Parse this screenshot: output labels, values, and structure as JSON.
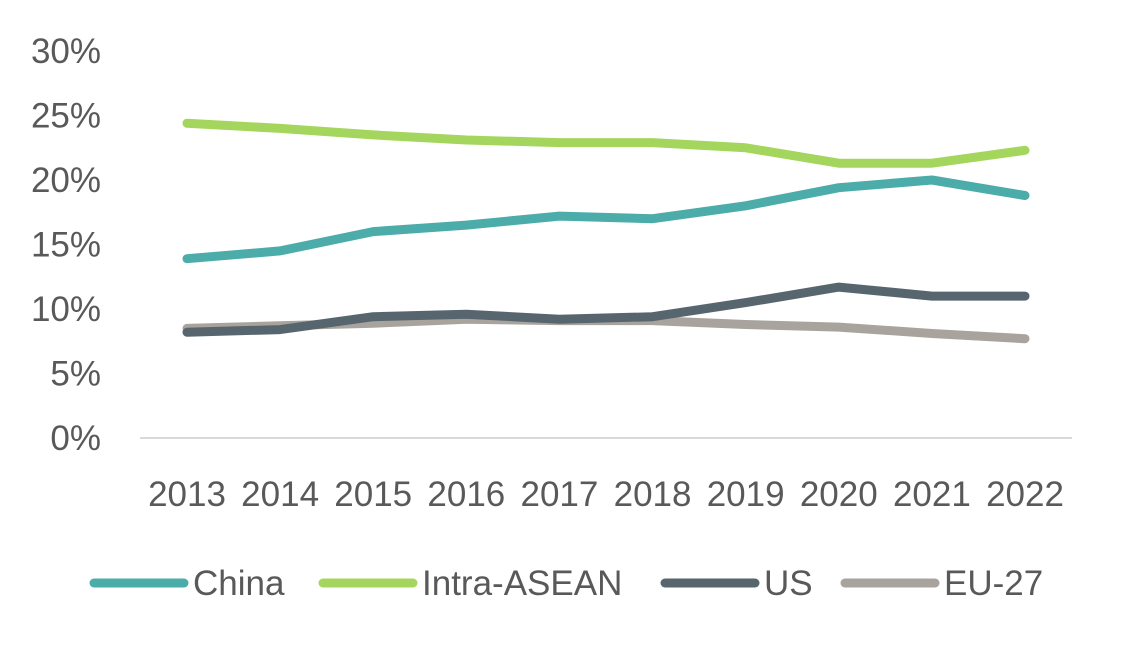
{
  "chart_data": {
    "type": "line",
    "title": "",
    "xlabel": "",
    "ylabel": "",
    "categories": [
      "2013",
      "2014",
      "2015",
      "2016",
      "2017",
      "2018",
      "2019",
      "2020",
      "2021",
      "2022"
    ],
    "y_ticks": [
      "0%",
      "5%",
      "10%",
      "15%",
      "20%",
      "25%",
      "30%"
    ],
    "ylim": [
      0,
      30
    ],
    "y_unit": "%",
    "grid": false,
    "legend_position": "bottom",
    "series": [
      {
        "name": "China",
        "color": "#4bacaa",
        "values": [
          13.9,
          14.5,
          16.0,
          16.5,
          17.2,
          17.0,
          18.0,
          19.4,
          20.0,
          18.8
        ]
      },
      {
        "name": "Intra-ASEAN",
        "color": "#a4d65e",
        "values": [
          24.4,
          24.0,
          23.5,
          23.1,
          22.9,
          22.9,
          22.5,
          21.3,
          21.3,
          22.3
        ]
      },
      {
        "name": "US",
        "color": "#56656e",
        "values": [
          8.2,
          8.4,
          9.4,
          9.6,
          9.2,
          9.4,
          10.5,
          11.7,
          11.0,
          11.0
        ]
      },
      {
        "name": "EU-27",
        "color": "#a9a39d",
        "values": [
          8.5,
          8.7,
          8.9,
          9.2,
          9.1,
          9.1,
          8.8,
          8.6,
          8.1,
          7.7
        ]
      }
    ]
  }
}
